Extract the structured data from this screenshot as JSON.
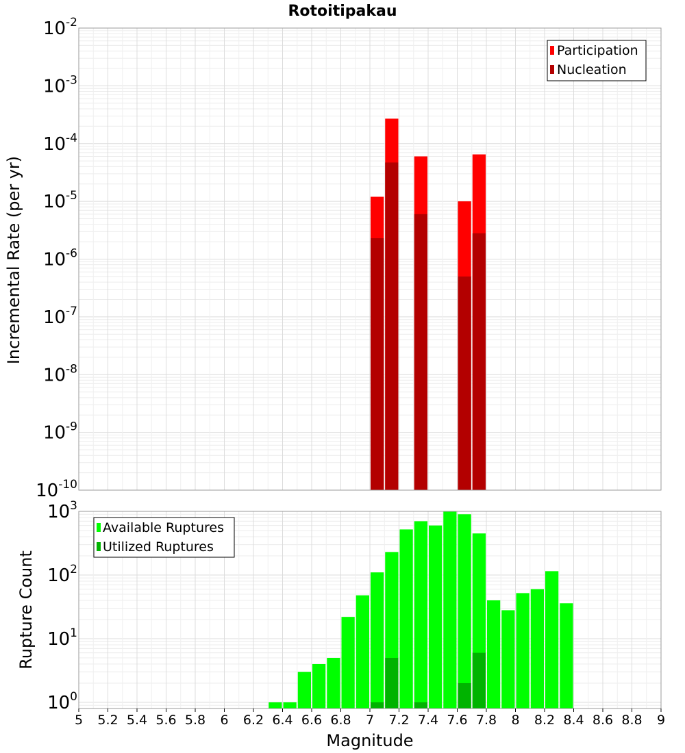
{
  "chart_data": [
    {
      "type": "bar",
      "title": "Rotoitipakau",
      "xlabel": "",
      "ylabel": "Incremental Rate (per yr)",
      "y_scale": "log",
      "ylim": [
        1e-10,
        0.01
      ],
      "xlim": [
        5,
        9
      ],
      "grid": true,
      "legend_position": "top-right",
      "series": [
        {
          "name": "Participation",
          "color": "#ff0000",
          "x": [
            7.05,
            7.15,
            7.35,
            7.65,
            7.75
          ],
          "values": [
            1.2e-05,
            0.00027,
            6e-05,
            1e-05,
            6.5e-05
          ]
        },
        {
          "name": "Nucleation",
          "color": "#b30000",
          "x": [
            7.05,
            7.15,
            7.35,
            7.65,
            7.75
          ],
          "values": [
            2.3e-06,
            4.7e-05,
            6e-06,
            5e-07,
            2.8e-06
          ]
        }
      ],
      "y_ticks": [
        {
          "base": "10",
          "exp": "-10"
        },
        {
          "base": "10",
          "exp": "-9"
        },
        {
          "base": "10",
          "exp": "-8"
        },
        {
          "base": "10",
          "exp": "-7"
        },
        {
          "base": "10",
          "exp": "-6"
        },
        {
          "base": "10",
          "exp": "-5"
        },
        {
          "base": "10",
          "exp": "-4"
        },
        {
          "base": "10",
          "exp": "-3"
        },
        {
          "base": "10",
          "exp": "-2"
        }
      ]
    },
    {
      "type": "bar",
      "title": "",
      "xlabel": "Magnitude",
      "ylabel": "Rupture Count",
      "y_scale": "log",
      "ylim": [
        0.8,
        1000
      ],
      "xlim": [
        5,
        9
      ],
      "grid": true,
      "legend_position": "top-left",
      "series": [
        {
          "name": "Available Ruptures",
          "color": "#00ff00",
          "x": [
            6.35,
            6.45,
            6.55,
            6.65,
            6.75,
            6.85,
            6.95,
            7.05,
            7.15,
            7.25,
            7.35,
            7.45,
            7.55,
            7.65,
            7.75,
            7.85,
            7.95,
            8.05,
            8.15,
            8.25,
            8.35
          ],
          "values": [
            1,
            1,
            3,
            4,
            5,
            22,
            48,
            110,
            230,
            520,
            700,
            600,
            1000,
            900,
            450,
            40,
            28,
            52,
            60,
            115,
            36
          ]
        },
        {
          "name": "Utilized Ruptures",
          "color": "#00b300",
          "x": [
            7.05,
            7.15,
            7.35,
            7.65,
            7.75
          ],
          "values": [
            1,
            5,
            1,
            2,
            6
          ]
        }
      ],
      "y_ticks": [
        {
          "base": "10",
          "exp": "0"
        },
        {
          "base": "10",
          "exp": "1"
        },
        {
          "base": "10",
          "exp": "2"
        },
        {
          "base": "10",
          "exp": "3"
        }
      ],
      "x_ticks": [
        "5",
        "5.2",
        "5.4",
        "5.6",
        "5.8",
        "6",
        "6.2",
        "6.4",
        "6.6",
        "6.8",
        "7",
        "7.2",
        "7.4",
        "7.6",
        "7.8",
        "8",
        "8.2",
        "8.4",
        "8.6",
        "8.8",
        "9"
      ]
    }
  ]
}
